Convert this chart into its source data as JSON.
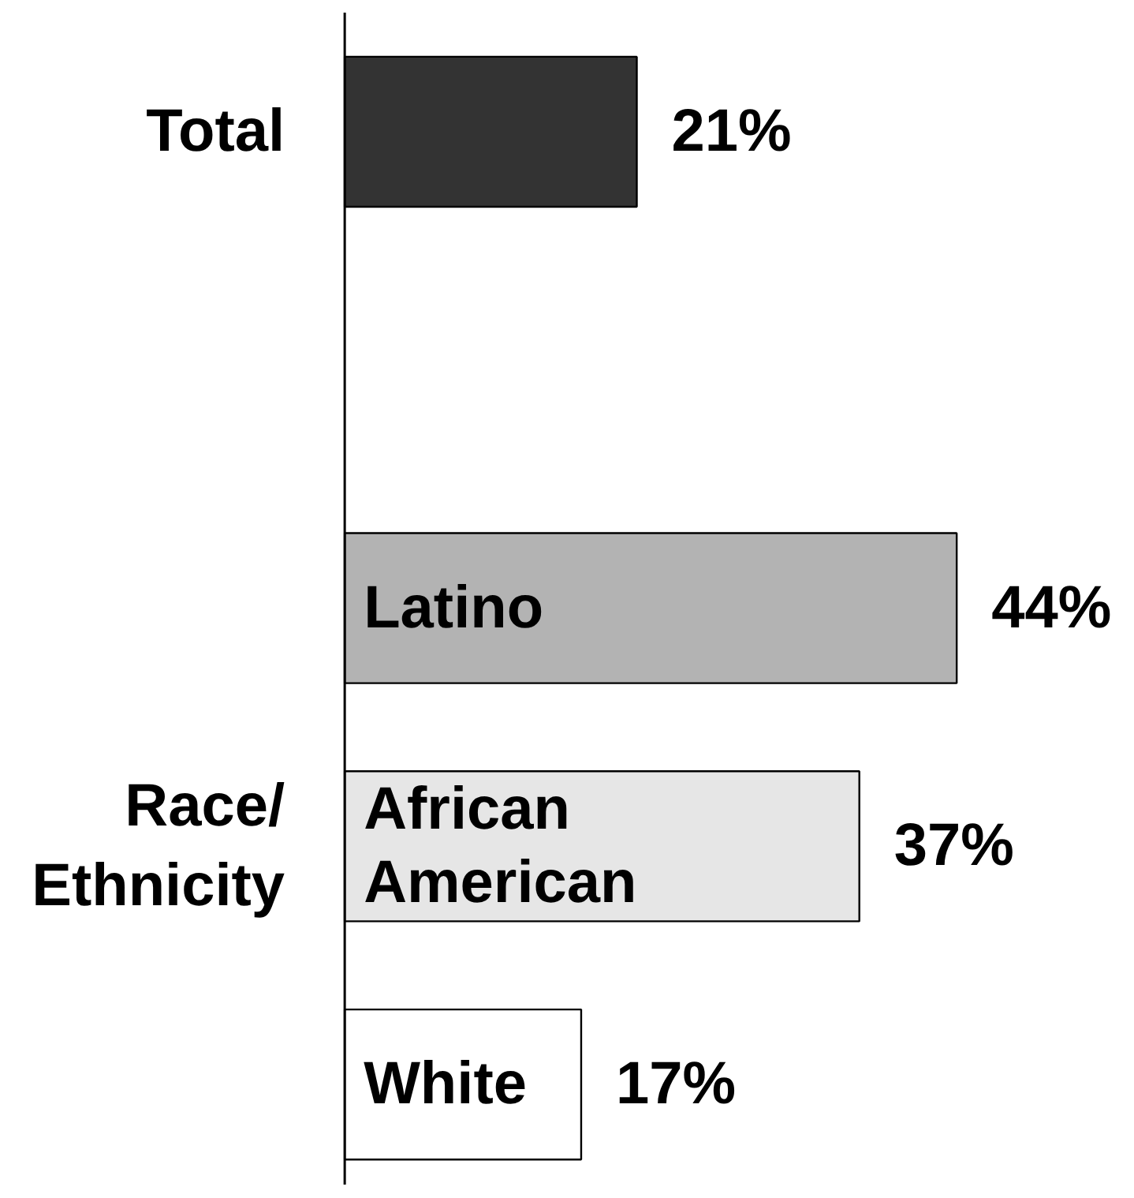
{
  "chart_data": {
    "type": "bar",
    "orientation": "horizontal",
    "categories": [
      "Total",
      null,
      "Latino",
      "African American",
      "White"
    ],
    "values": [
      21,
      null,
      44,
      37,
      17
    ],
    "colors": [
      "#333333",
      "#ffffff",
      "#b3b3b3",
      "#e6e6e6",
      "#ffffff"
    ],
    "value_labels": [
      "21%",
      null,
      "44%",
      "37%",
      "17%"
    ],
    "grid": false,
    "annotations": [
      "Race/\nEthnicity"
    ]
  }
}
